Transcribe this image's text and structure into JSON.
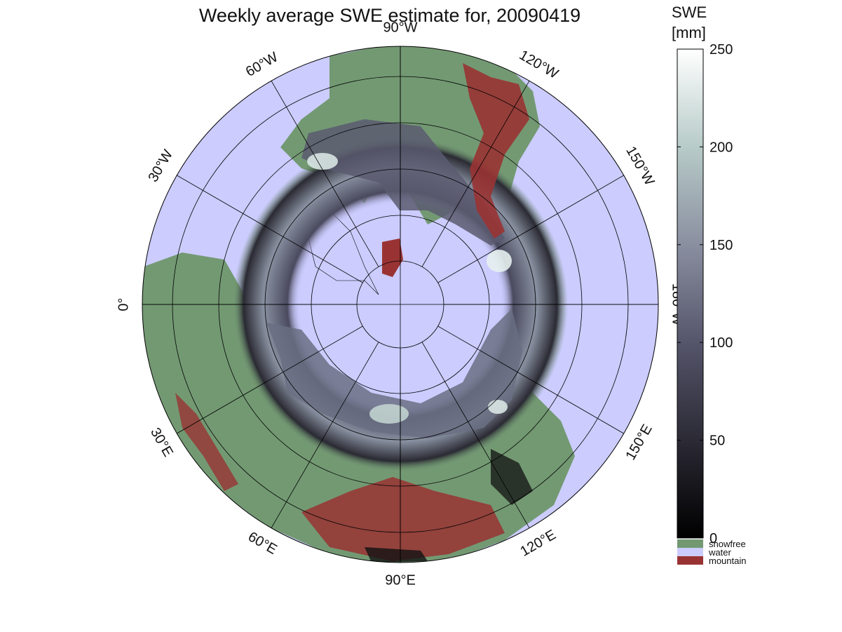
{
  "title": "Weekly average SWE estimate for, 20090419",
  "colorbar": {
    "title_line1": "SWE",
    "title_line2": "[mm]",
    "ticks": [
      "0",
      "50",
      "100",
      "150",
      "200",
      "250"
    ],
    "tick_values": [
      0,
      50,
      100,
      150,
      200,
      250
    ],
    "range": [
      0,
      250
    ],
    "colors": [
      "#000000",
      "#2b2a35",
      "#55556b",
      "#8a8fa0",
      "#b7cbc8",
      "#ffffff"
    ]
  },
  "legend": [
    {
      "label": "snowfree",
      "color": "#739973"
    },
    {
      "label": "water",
      "color": "#ccccff"
    },
    {
      "label": "mountain",
      "color": "#993333"
    }
  ],
  "longitude_labels": [
    {
      "text": "90°W",
      "lon_deg": -90
    },
    {
      "text": "120°W",
      "lon_deg": -120
    },
    {
      "text": "150°W",
      "lon_deg": -150
    },
    {
      "text": "180°W",
      "lon_deg": 180
    },
    {
      "text": "150°E",
      "lon_deg": 150
    },
    {
      "text": "120°E",
      "lon_deg": 120
    },
    {
      "text": "90°E",
      "lon_deg": 90
    },
    {
      "text": "60°E",
      "lon_deg": 60
    },
    {
      "text": "30°E",
      "lon_deg": 30
    },
    {
      "text": "0°",
      "lon_deg": 0
    },
    {
      "text": "30°W",
      "lon_deg": -30
    },
    {
      "text": "60°W",
      "lon_deg": -60
    }
  ],
  "map": {
    "projection": "north polar stereographic",
    "colors": {
      "water": "#ccccff",
      "snowfree": "#739973",
      "mountain": "#993333",
      "grid": "#000000"
    }
  }
}
